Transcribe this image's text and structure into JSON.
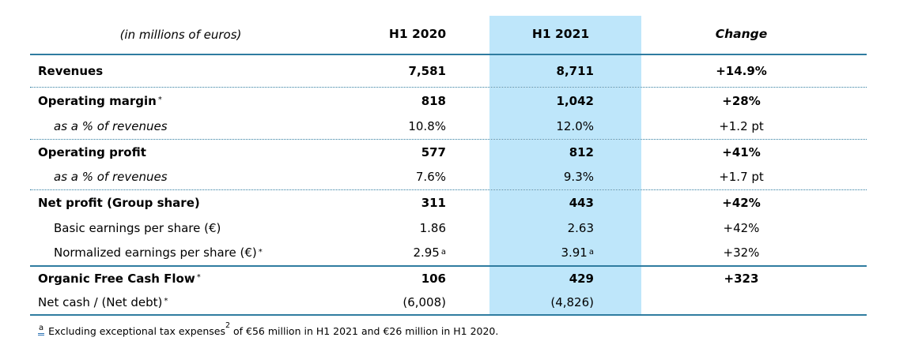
{
  "colors": {
    "column_highlight": "#BEE6FA",
    "rule_lines": "#2F7CA0",
    "footnote_marker_underline": "#2E74B5"
  },
  "table": {
    "unit_label": "(in millions of euros)",
    "headers": {
      "h1_2020": "H1 2020",
      "h1_2021": "H1 2021",
      "change": "Change"
    },
    "rows": [
      {
        "label": "Revenues",
        "label_sup": "",
        "style": "bold",
        "values_bold": true,
        "h1_2020": "7,581",
        "h1_2020_sup": "",
        "h1_2021": "8,711",
        "h1_2021_sup": "",
        "change": "+14.9%",
        "divider": "dotted"
      },
      {
        "label": "Operating margin",
        "label_sup": "*",
        "style": "bold",
        "values_bold": true,
        "h1_2020": "818",
        "h1_2020_sup": "",
        "h1_2021": "1,042",
        "h1_2021_sup": "",
        "change": "+28%",
        "divider": "none"
      },
      {
        "label": "as a % of revenues",
        "label_sup": "",
        "style": "sub-italic",
        "values_bold": false,
        "h1_2020": "10.8%",
        "h1_2020_sup": "",
        "h1_2021": "12.0%",
        "h1_2021_sup": "",
        "change": "+1.2 pt",
        "divider": "dotted"
      },
      {
        "label": "Operating profit",
        "label_sup": "",
        "style": "bold",
        "values_bold": true,
        "h1_2020": "577",
        "h1_2020_sup": "",
        "h1_2021": "812",
        "h1_2021_sup": "",
        "change": "+41%",
        "divider": "none"
      },
      {
        "label": "as a % of revenues",
        "label_sup": "",
        "style": "sub-italic",
        "values_bold": false,
        "h1_2020": "7.6%",
        "h1_2020_sup": "",
        "h1_2021": "9.3%",
        "h1_2021_sup": "",
        "change": "+1.7 pt",
        "divider": "dotted"
      },
      {
        "label": "Net profit (Group share)",
        "label_sup": "",
        "style": "bold",
        "values_bold": true,
        "h1_2020": "311",
        "h1_2020_sup": "",
        "h1_2021": "443",
        "h1_2021_sup": "",
        "change": "+42%",
        "divider": "none"
      },
      {
        "label": "Basic earnings per share (€)",
        "label_sup": "",
        "style": "sub",
        "values_bold": false,
        "h1_2020": "1.86",
        "h1_2020_sup": "",
        "h1_2021": "2.63",
        "h1_2021_sup": "",
        "change": "+42%",
        "divider": "none"
      },
      {
        "label": "Normalized earnings per share (€)",
        "label_sup": "*",
        "style": "sub",
        "values_bold": false,
        "h1_2020": "2.95",
        "h1_2020_sup": "a",
        "h1_2021": "3.91",
        "h1_2021_sup": "a",
        "change": "+32%",
        "divider": "solid"
      },
      {
        "label": "Organic Free Cash Flow",
        "label_sup": "*",
        "style": "bold",
        "values_bold": true,
        "h1_2020": "106",
        "h1_2020_sup": "",
        "h1_2021": "429",
        "h1_2021_sup": "",
        "change": "+323",
        "divider": "none"
      },
      {
        "label": "Net cash / (Net debt)",
        "label_sup": "*",
        "style": "plain",
        "values_bold": false,
        "h1_2020": "(6,008)",
        "h1_2020_sup": "",
        "h1_2021": "(4,826)",
        "h1_2021_sup": "",
        "change": "",
        "divider": "solid"
      }
    ]
  },
  "footnote": {
    "marker": "a",
    "text": "Excluding exceptional tax expenses",
    "sup": "2",
    "text_after": " of €56 million in H1 2021 and €26 million in H1 2020."
  }
}
